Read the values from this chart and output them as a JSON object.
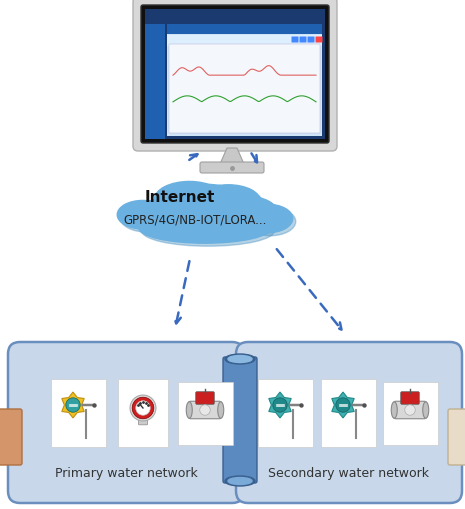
{
  "bg_color": "#ffffff",
  "cloud_color": "#6ab0e0",
  "cloud_shadow": "#4a90c0",
  "cloud_text": "Internet",
  "cloud_subtext": "GPRS/4G/NB-IOT/LORA...",
  "arrow_color": "#3a6abf",
  "primary_label": "Primary water network",
  "secondary_label": "Secondary water network",
  "network_box_fill": "#c8d8ea",
  "network_box_edge": "#6a8fbf",
  "pipe_fill": "#5a8ac0",
  "pipe_dark": "#3a6090",
  "pipe_light": "#8ab8e0",
  "left_pipe_fill": "#d4956a",
  "left_pipe_edge": "#b07040",
  "right_pipe_fill": "#e8dcc8",
  "right_pipe_edge": "#c0b090",
  "monitor_bezel": "#d8d8d8",
  "monitor_bezel_edge": "#b0b0b0",
  "monitor_screen_bg": "#1a3a70",
  "monitor_dash_bg": "#d0e4f8",
  "monitor_sidebar": "#2060b0",
  "monitor_topbar": "#2060b0",
  "chart_line1": "#e06060",
  "chart_line2": "#30a030",
  "sensor_yellow": "#f0c020",
  "sensor_teal": "#30a0a0",
  "sensor_dark": "#c09010",
  "pressure_red": "#cc2020",
  "pressure_ring": "#d8d8d8"
}
